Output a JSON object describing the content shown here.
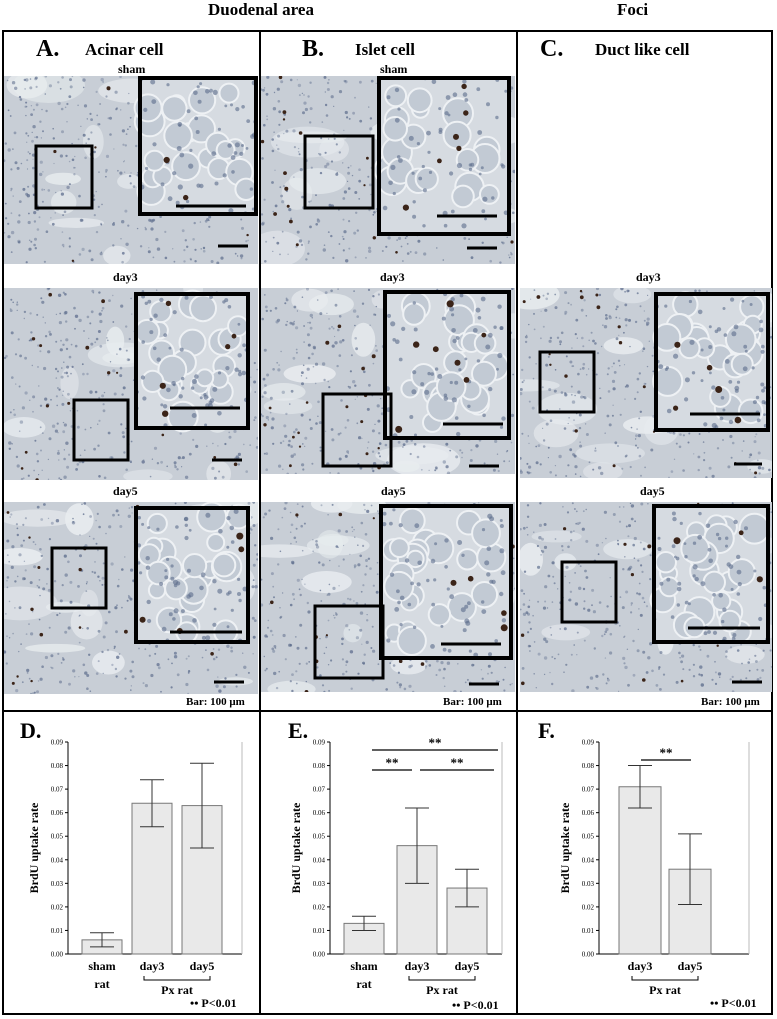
{
  "headers": {
    "duodenal": "Duodenal area",
    "foci": "Foci"
  },
  "columns": [
    {
      "letter": "A.",
      "title": "Acinar cell"
    },
    {
      "letter": "B.",
      "title": "Islet cell"
    },
    {
      "letter": "C.",
      "title": "Duct like cell"
    }
  ],
  "rows": {
    "sham": "sham",
    "day3": "day3",
    "day5": "day5"
  },
  "scale_bar_label": "Bar: 100 μm",
  "colors": {
    "tissue_bg": "#c8ced6",
    "tissue_light": "#e8ecef",
    "nuclei": "#5a6a8a",
    "brdu": "#3b2418",
    "bar_fill": "#e9e9e9"
  },
  "charts": {
    "D": {
      "letter": "D.",
      "ylabel": "BrdU uptake rate",
      "note": "P<0.01",
      "group_label": "Px rat",
      "sham_line1": "sham",
      "sham_line2": "rat"
    },
    "E": {
      "letter": "E.",
      "ylabel": "BrdU uptake rate",
      "note": "P<0.01",
      "group_label": "Px rat",
      "sham_line1": "sham",
      "sham_line2": "rat",
      "sig": [
        "**",
        "**",
        "**"
      ]
    },
    "F": {
      "letter": "F.",
      "ylabel": "BrdU uptake rate",
      "note": "P<0.01",
      "group_label": "Px rat",
      "sig": [
        "**"
      ]
    }
  },
  "chart_data": [
    {
      "type": "bar",
      "title": "",
      "ylabel": "BrdU uptake rate",
      "categories": [
        "sham rat",
        "day3",
        "day5"
      ],
      "values": [
        0.006,
        0.064,
        0.063
      ],
      "error": [
        0.003,
        0.01,
        0.018
      ],
      "ylim": [
        0,
        0.09
      ],
      "yticks": [
        "0.00",
        "0.01",
        "0.02",
        "0.03",
        "0.04",
        "0.05",
        "0.06",
        "0.07",
        "0.08",
        "0.09"
      ]
    },
    {
      "type": "bar",
      "title": "",
      "ylabel": "BrdU uptake rate",
      "categories": [
        "sham rat",
        "day3",
        "day5"
      ],
      "values": [
        0.013,
        0.046,
        0.028
      ],
      "error": [
        0.003,
        0.016,
        0.008
      ],
      "ylim": [
        0,
        0.09
      ],
      "yticks": [
        "0.00",
        "0.01",
        "0.02",
        "0.03",
        "0.04",
        "0.05",
        "0.06",
        "0.07",
        "0.08",
        "0.09"
      ]
    },
    {
      "type": "bar",
      "title": "",
      "ylabel": "BrdU uptake rate",
      "categories": [
        "day3",
        "day5"
      ],
      "values": [
        0.071,
        0.036
      ],
      "error": [
        0.009,
        0.015
      ],
      "ylim": [
        0,
        0.09
      ],
      "yticks": [
        "0.00",
        "0.01",
        "0.02",
        "0.03",
        "0.04",
        "0.05",
        "0.06",
        "0.07",
        "0.08",
        "0.09"
      ]
    }
  ]
}
